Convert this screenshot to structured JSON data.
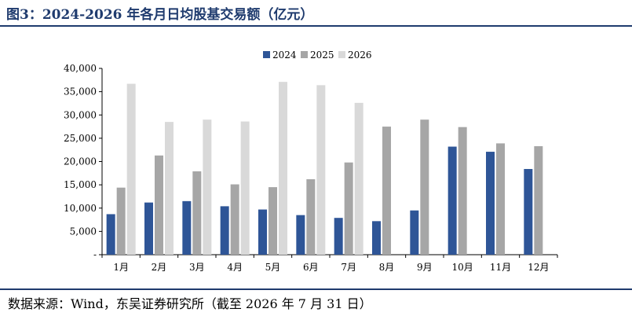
{
  "title": "图3：2024-2026 年各月日均股基交易额（亿元）",
  "source": "数据来源：Wind，东吴证券研究所（截至 2026 年 7 月 31 日）",
  "colors": {
    "2024": "#2e5597",
    "2025": "#a6a6a6",
    "2026": "#d9d9d9",
    "title": "#1f3b6e"
  },
  "chart_data": {
    "type": "bar",
    "categories": [
      "1月",
      "2月",
      "3月",
      "4月",
      "5月",
      "6月",
      "7月",
      "8月",
      "9月",
      "10月",
      "11月",
      "12月"
    ],
    "series": [
      {
        "name": "2024",
        "values": [
          8700,
          11200,
          11500,
          10400,
          9700,
          8500,
          7900,
          7200,
          9500,
          23200,
          22100,
          18400
        ]
      },
      {
        "name": "2025",
        "values": [
          14400,
          21300,
          17900,
          15100,
          14500,
          16200,
          19800,
          27500,
          29000,
          27400,
          23900,
          23300
        ]
      },
      {
        "name": "2026",
        "values": [
          36700,
          28500,
          29000,
          28600,
          null,
          null,
          null,
          null,
          null,
          null,
          null,
          null
        ]
      }
    ],
    "series_2026_note": null,
    "ylim": [
      0,
      40000
    ],
    "yticks": [
      0,
      5000,
      10000,
      15000,
      20000,
      25000,
      30000,
      35000,
      40000
    ],
    "ytick_labels": [
      "-",
      "5,000",
      "10,000",
      "15,000",
      "20,000",
      "25,000",
      "30,000",
      "35,000",
      "40,000"
    ],
    "grid": false,
    "legend": "top-center"
  }
}
